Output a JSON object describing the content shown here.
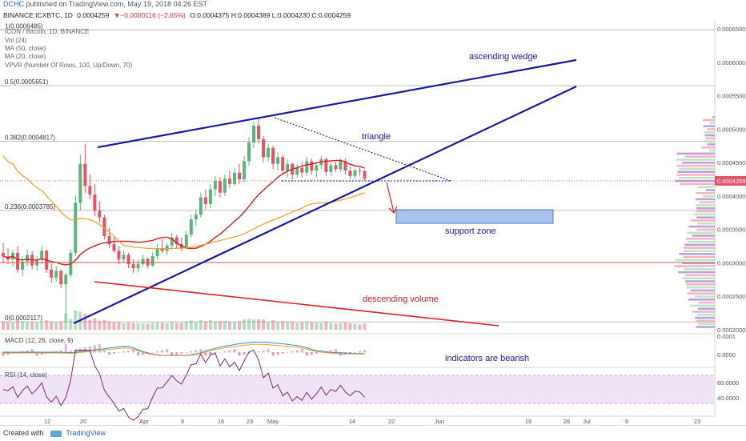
{
  "header": {
    "author": "DCHC",
    "published_text": "published on TradingView.com, May 19, 2018 04:26 EST",
    "symbol": "BINANCE:ICXBTC, 1D",
    "last": "0.0004259",
    "change": "▼−0.0000116 (−2.65%)",
    "ohlc": "O:0.0004375 H:0.0004389 L:0.0004230 C:0.0004259"
  },
  "legend": {
    "title": "ICON / Bitcoin, 1D, BINANCE",
    "vol": "Vol (24)",
    "ma50": "MA (50, close)",
    "ma20": "MA (20, close)",
    "vpvr": "VPVR (Number Of Rows, 100, Up/Down, 70)"
  },
  "fib_labels": [
    {
      "label": "1(0.0006485)",
      "price": 0.0006485
    },
    {
      "label": "0.5(0.0005651)",
      "price": 0.0005651
    },
    {
      "label": "0.382(0.0004817)",
      "price": 0.0004817
    },
    {
      "label": "0.236(0.0003785)",
      "price": 0.0003785
    },
    {
      "label": "0(0.0002117)",
      "price": 0.0002117
    }
  ],
  "annotations": {
    "ascending_wedge": "ascending wedge",
    "triangle": "triangle",
    "support_zone": "support zone",
    "descending_volume": "descending volume",
    "indicators_bearish": "indicators are bearish"
  },
  "macd": {
    "label": "MACD (12, 26, close, 9)",
    "ticks": [
      "0.0001",
      "0.0000"
    ]
  },
  "rsi": {
    "label": "RSI (14, close)",
    "ticks": [
      "60.0000",
      "40.0000"
    ]
  },
  "price_axis_ticks": [
    "0.0006500",
    "0.0006000",
    "0.0005500",
    "0.0005000",
    "0.0004500",
    "0.0004000",
    "0.0003500",
    "0.0003000",
    "0.0002500",
    "0.0002000"
  ],
  "last_price_tag": "0.0004259",
  "x_axis_ticks": [
    "12",
    "20",
    "Apr",
    "9",
    "16",
    "23",
    "May",
    "14",
    "22",
    "Jun",
    "19",
    "26",
    "Jul",
    "9",
    "23"
  ],
  "footer": {
    "created_with": "Created with",
    "brand": "TradingView"
  },
  "colors": {
    "wedge": "#1a1aa8",
    "ma20": "#e01b1b",
    "ma50": "#f0a020",
    "up": "#5db47a",
    "down": "#e0576b",
    "support": "#9bb8ea",
    "rsi": "#7a2e6e",
    "rsi_band": "#efe3f6",
    "macd": "#2b8de0",
    "signal": "#f0a020"
  },
  "chart_data": {
    "type": "candlestick",
    "title": "BINANCE:ICXBTC, 1D",
    "ylim": [
      0.0002,
      0.00065
    ],
    "x_range": [
      "2018-03-05",
      "2018-07-26"
    ],
    "candles": [
      {
        "d": "2018-03-05",
        "o": 0.000315,
        "h": 0.00033,
        "l": 0.0003,
        "c": 0.00031
      },
      {
        "d": "2018-03-06",
        "o": 0.00031,
        "h": 0.000322,
        "l": 0.000298,
        "c": 0.000305
      },
      {
        "d": "2018-03-07",
        "o": 0.000305,
        "h": 0.00032,
        "l": 0.000295,
        "c": 0.000315
      },
      {
        "d": "2018-03-08",
        "o": 0.000315,
        "h": 0.000325,
        "l": 0.000285,
        "c": 0.00029
      },
      {
        "d": "2018-03-09",
        "o": 0.00029,
        "h": 0.00031,
        "l": 0.00028,
        "c": 0.000302
      },
      {
        "d": "2018-03-10",
        "o": 0.000302,
        "h": 0.00032,
        "l": 0.000295,
        "c": 0.000312
      },
      {
        "d": "2018-03-11",
        "o": 0.000312,
        "h": 0.000318,
        "l": 0.00029,
        "c": 0.000296
      },
      {
        "d": "2018-03-12",
        "o": 0.000296,
        "h": 0.00031,
        "l": 0.000288,
        "c": 0.000305
      },
      {
        "d": "2018-03-13",
        "o": 0.000305,
        "h": 0.000325,
        "l": 0.000298,
        "c": 0.000318
      },
      {
        "d": "2018-03-14",
        "o": 0.000318,
        "h": 0.00032,
        "l": 0.000285,
        "c": 0.00029
      },
      {
        "d": "2018-03-15",
        "o": 0.00029,
        "h": 0.000298,
        "l": 0.00027,
        "c": 0.000278
      },
      {
        "d": "2018-03-16",
        "o": 0.000278,
        "h": 0.000295,
        "l": 0.000272,
        "c": 0.000288
      },
      {
        "d": "2018-03-17",
        "o": 0.000288,
        "h": 0.00029,
        "l": 0.000262,
        "c": 0.000268
      },
      {
        "d": "2018-03-18",
        "o": 0.000268,
        "h": 0.000285,
        "l": 0.000212,
        "c": 0.000282
      },
      {
        "d": "2018-03-19",
        "o": 0.000282,
        "h": 0.00032,
        "l": 0.000278,
        "c": 0.000315
      },
      {
        "d": "2018-03-20",
        "o": 0.000315,
        "h": 0.0004,
        "l": 0.00031,
        "c": 0.00039
      },
      {
        "d": "2018-03-21",
        "o": 0.00039,
        "h": 0.000462,
        "l": 0.000378,
        "c": 0.000448
      },
      {
        "d": "2018-03-22",
        "o": 0.000448,
        "h": 0.000478,
        "l": 0.000405,
        "c": 0.000415
      },
      {
        "d": "2018-03-23",
        "o": 0.000415,
        "h": 0.000432,
        "l": 0.000395,
        "c": 0.000402
      },
      {
        "d": "2018-03-24",
        "o": 0.000402,
        "h": 0.000418,
        "l": 0.00037,
        "c": 0.000378
      },
      {
        "d": "2018-03-25",
        "o": 0.000378,
        "h": 0.000392,
        "l": 0.00036,
        "c": 0.000368
      },
      {
        "d": "2018-03-26",
        "o": 0.000368,
        "h": 0.000372,
        "l": 0.000335,
        "c": 0.00034
      },
      {
        "d": "2018-03-27",
        "o": 0.00034,
        "h": 0.000352,
        "l": 0.000322,
        "c": 0.000328
      },
      {
        "d": "2018-03-28",
        "o": 0.000328,
        "h": 0.00034,
        "l": 0.000315,
        "c": 0.000318
      },
      {
        "d": "2018-03-29",
        "o": 0.000318,
        "h": 0.000325,
        "l": 0.000298,
        "c": 0.000305
      },
      {
        "d": "2018-03-30",
        "o": 0.000305,
        "h": 0.000318,
        "l": 0.0003,
        "c": 0.000312
      },
      {
        "d": "2018-03-31",
        "o": 0.000312,
        "h": 0.000315,
        "l": 0.000292,
        "c": 0.000298
      },
      {
        "d": "2018-04-01",
        "o": 0.000298,
        "h": 0.000305,
        "l": 0.000285,
        "c": 0.000292
      },
      {
        "d": "2018-04-02",
        "o": 0.000292,
        "h": 0.000305,
        "l": 0.000286,
        "c": 0.000298
      },
      {
        "d": "2018-04-03",
        "o": 0.000298,
        "h": 0.000312,
        "l": 0.000294,
        "c": 0.000306
      },
      {
        "d": "2018-04-04",
        "o": 0.000306,
        "h": 0.000308,
        "l": 0.000292,
        "c": 0.000296
      },
      {
        "d": "2018-04-05",
        "o": 0.000296,
        "h": 0.000315,
        "l": 0.000294,
        "c": 0.00031
      },
      {
        "d": "2018-04-06",
        "o": 0.00031,
        "h": 0.000328,
        "l": 0.000305,
        "c": 0.000322
      },
      {
        "d": "2018-04-07",
        "o": 0.000322,
        "h": 0.000335,
        "l": 0.000315,
        "c": 0.000318
      },
      {
        "d": "2018-04-08",
        "o": 0.000318,
        "h": 0.00033,
        "l": 0.000312,
        "c": 0.000326
      },
      {
        "d": "2018-04-09",
        "o": 0.000326,
        "h": 0.000345,
        "l": 0.00032,
        "c": 0.000338
      },
      {
        "d": "2018-04-10",
        "o": 0.000338,
        "h": 0.000342,
        "l": 0.000322,
        "c": 0.000328
      },
      {
        "d": "2018-04-11",
        "o": 0.000328,
        "h": 0.000338,
        "l": 0.000318,
        "c": 0.000322
      },
      {
        "d": "2018-04-12",
        "o": 0.000322,
        "h": 0.000348,
        "l": 0.00032,
        "c": 0.000342
      },
      {
        "d": "2018-04-13",
        "o": 0.000342,
        "h": 0.000372,
        "l": 0.000338,
        "c": 0.000365
      },
      {
        "d": "2018-04-14",
        "o": 0.000365,
        "h": 0.00038,
        "l": 0.000355,
        "c": 0.000372
      },
      {
        "d": "2018-04-15",
        "o": 0.000372,
        "h": 0.000405,
        "l": 0.000368,
        "c": 0.000398
      },
      {
        "d": "2018-04-16",
        "o": 0.000398,
        "h": 0.00041,
        "l": 0.00038,
        "c": 0.000388
      },
      {
        "d": "2018-04-17",
        "o": 0.000388,
        "h": 0.000418,
        "l": 0.000382,
        "c": 0.00041
      },
      {
        "d": "2018-04-18",
        "o": 0.00041,
        "h": 0.00043,
        "l": 0.0004,
        "c": 0.000422
      },
      {
        "d": "2018-04-19",
        "o": 0.000422,
        "h": 0.000428,
        "l": 0.000398,
        "c": 0.000405
      },
      {
        "d": "2018-04-20",
        "o": 0.000405,
        "h": 0.000432,
        "l": 0.0004,
        "c": 0.000426
      },
      {
        "d": "2018-04-21",
        "o": 0.000426,
        "h": 0.000438,
        "l": 0.000412,
        "c": 0.000418
      },
      {
        "d": "2018-04-22",
        "o": 0.000418,
        "h": 0.000442,
        "l": 0.000415,
        "c": 0.000435
      },
      {
        "d": "2018-04-23",
        "o": 0.000435,
        "h": 0.000448,
        "l": 0.000418,
        "c": 0.000425
      },
      {
        "d": "2018-04-24",
        "o": 0.000425,
        "h": 0.00046,
        "l": 0.00042,
        "c": 0.000452
      },
      {
        "d": "2018-04-25",
        "o": 0.000452,
        "h": 0.000488,
        "l": 0.000445,
        "c": 0.00048
      },
      {
        "d": "2018-04-26",
        "o": 0.00048,
        "h": 0.000512,
        "l": 0.000472,
        "c": 0.000505
      },
      {
        "d": "2018-04-27",
        "o": 0.000505,
        "h": 0.000518,
        "l": 0.000478,
        "c": 0.000485
      },
      {
        "d": "2018-04-28",
        "o": 0.000485,
        "h": 0.00049,
        "l": 0.00045,
        "c": 0.000458
      },
      {
        "d": "2018-04-29",
        "o": 0.000458,
        "h": 0.000478,
        "l": 0.000452,
        "c": 0.000472
      },
      {
        "d": "2018-04-30",
        "o": 0.000472,
        "h": 0.000475,
        "l": 0.00044,
        "c": 0.000448
      },
      {
        "d": "2018-05-01",
        "o": 0.000448,
        "h": 0.000465,
        "l": 0.000438,
        "c": 0.000458
      },
      {
        "d": "2018-05-02",
        "o": 0.000458,
        "h": 0.000462,
        "l": 0.000432,
        "c": 0.000438
      },
      {
        "d": "2018-05-03",
        "o": 0.000438,
        "h": 0.000455,
        "l": 0.000428,
        "c": 0.000448
      },
      {
        "d": "2018-05-04",
        "o": 0.000448,
        "h": 0.00045,
        "l": 0.000425,
        "c": 0.000432
      },
      {
        "d": "2018-05-05",
        "o": 0.000432,
        "h": 0.000448,
        "l": 0.000428,
        "c": 0.000442
      },
      {
        "d": "2018-05-06",
        "o": 0.000442,
        "h": 0.000452,
        "l": 0.000428,
        "c": 0.000435
      },
      {
        "d": "2018-05-07",
        "o": 0.000435,
        "h": 0.000458,
        "l": 0.00043,
        "c": 0.000452
      },
      {
        "d": "2018-05-08",
        "o": 0.000452,
        "h": 0.000456,
        "l": 0.000432,
        "c": 0.000438
      },
      {
        "d": "2018-05-09",
        "o": 0.000438,
        "h": 0.00045,
        "l": 0.000428,
        "c": 0.000446
      },
      {
        "d": "2018-05-10",
        "o": 0.000446,
        "h": 0.00046,
        "l": 0.00044,
        "c": 0.000455
      },
      {
        "d": "2018-05-11",
        "o": 0.000455,
        "h": 0.000458,
        "l": 0.00043,
        "c": 0.000436
      },
      {
        "d": "2018-05-12",
        "o": 0.000436,
        "h": 0.00045,
        "l": 0.00043,
        "c": 0.000446
      },
      {
        "d": "2018-05-13",
        "o": 0.000446,
        "h": 0.000452,
        "l": 0.000436,
        "c": 0.00044
      },
      {
        "d": "2018-05-14",
        "o": 0.00044,
        "h": 0.000456,
        "l": 0.000436,
        "c": 0.000452
      },
      {
        "d": "2018-05-15",
        "o": 0.000452,
        "h": 0.000456,
        "l": 0.000432,
        "c": 0.000438
      },
      {
        "d": "2018-05-16",
        "o": 0.000438,
        "h": 0.000444,
        "l": 0.000425,
        "c": 0.00043
      },
      {
        "d": "2018-05-17",
        "o": 0.00043,
        "h": 0.000442,
        "l": 0.000426,
        "c": 0.000438
      },
      {
        "d": "2018-05-18",
        "o": 0.000438,
        "h": 0.000442,
        "l": 0.00043,
        "c": 0.000437
      },
      {
        "d": "2018-05-19",
        "o": 0.0004375,
        "h": 0.0004389,
        "l": 0.000423,
        "c": 0.0004259
      }
    ]
  }
}
